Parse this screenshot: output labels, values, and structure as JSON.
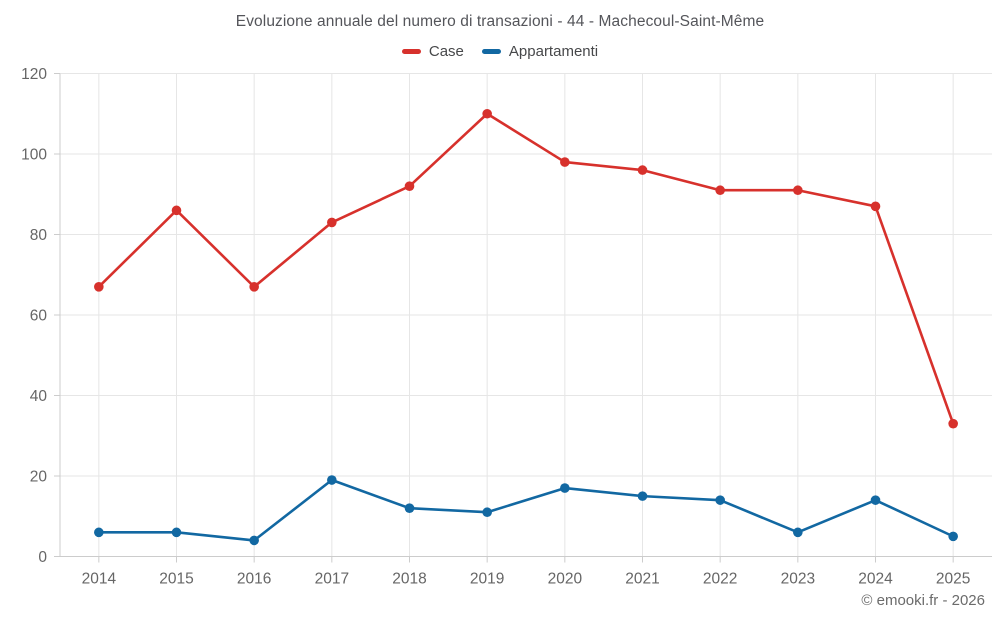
{
  "chart": {
    "title": "Evoluzione annuale del numero di transazioni - 44 - Machecoul-Saint-Même"
  },
  "footer": {
    "text": "© emooki.fr - 2026"
  },
  "colors": {
    "case_red": "#d7312c",
    "appartamenti_blue": "#1268a2",
    "grid": "#e6e6e6",
    "axis": "#cccccc",
    "tick_label": "#666666"
  },
  "chart_data": {
    "type": "line",
    "title": "Evoluzione annuale del numero di transazioni - 44 - Machecoul-Saint-Même",
    "categories": [
      "2014",
      "2015",
      "2016",
      "2017",
      "2018",
      "2019",
      "2020",
      "2021",
      "2022",
      "2023",
      "2024",
      "2025"
    ],
    "series": [
      {
        "name": "Case",
        "color": "#d7312c",
        "values": [
          67,
          86,
          67,
          83,
          92,
          110,
          98,
          96,
          91,
          91,
          87,
          33
        ]
      },
      {
        "name": "Appartamenti",
        "color": "#1268a2",
        "values": [
          6,
          6,
          4,
          19,
          12,
          11,
          17,
          15,
          14,
          6,
          14,
          5
        ]
      }
    ],
    "xlabel": "",
    "ylabel": "",
    "ylim": [
      0,
      120
    ],
    "y_ticks": [
      0,
      20,
      40,
      60,
      80,
      100,
      120
    ],
    "grid": true,
    "legend_position": "top"
  }
}
